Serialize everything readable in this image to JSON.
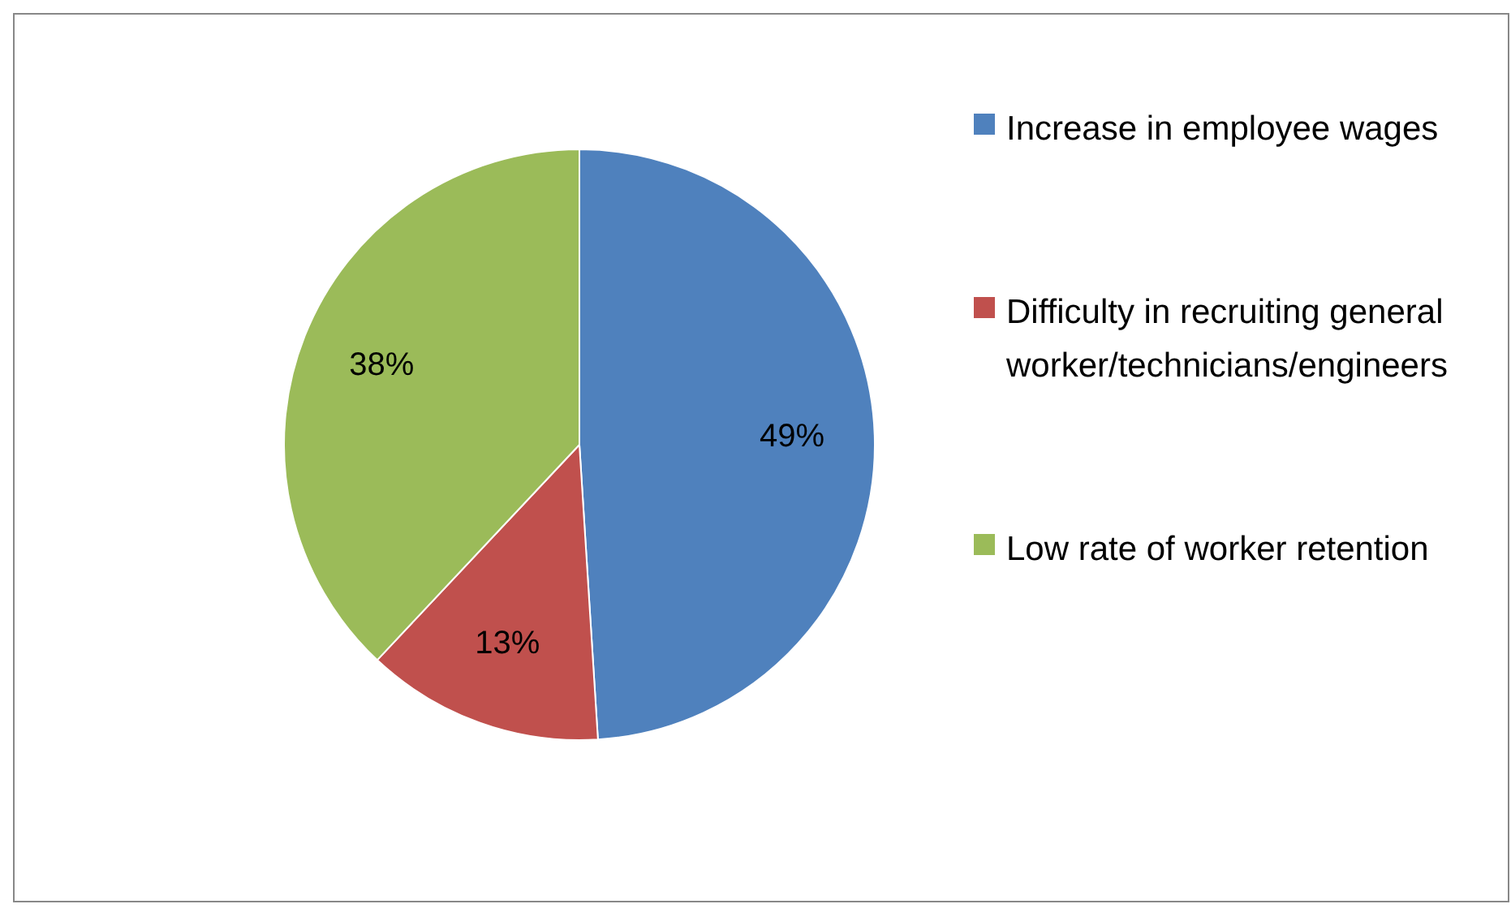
{
  "chart_data": {
    "type": "pie",
    "categories": [
      "Increase in employee wages",
      "Difficulty in recruiting general worker/technicians/engineers",
      "Low rate of worker retention"
    ],
    "values": [
      49,
      13,
      38
    ],
    "colors": [
      "#4f81bd",
      "#c0504d",
      "#9bbb59"
    ],
    "value_labels": [
      "49%",
      "13%",
      "38%"
    ],
    "legend": "right"
  }
}
